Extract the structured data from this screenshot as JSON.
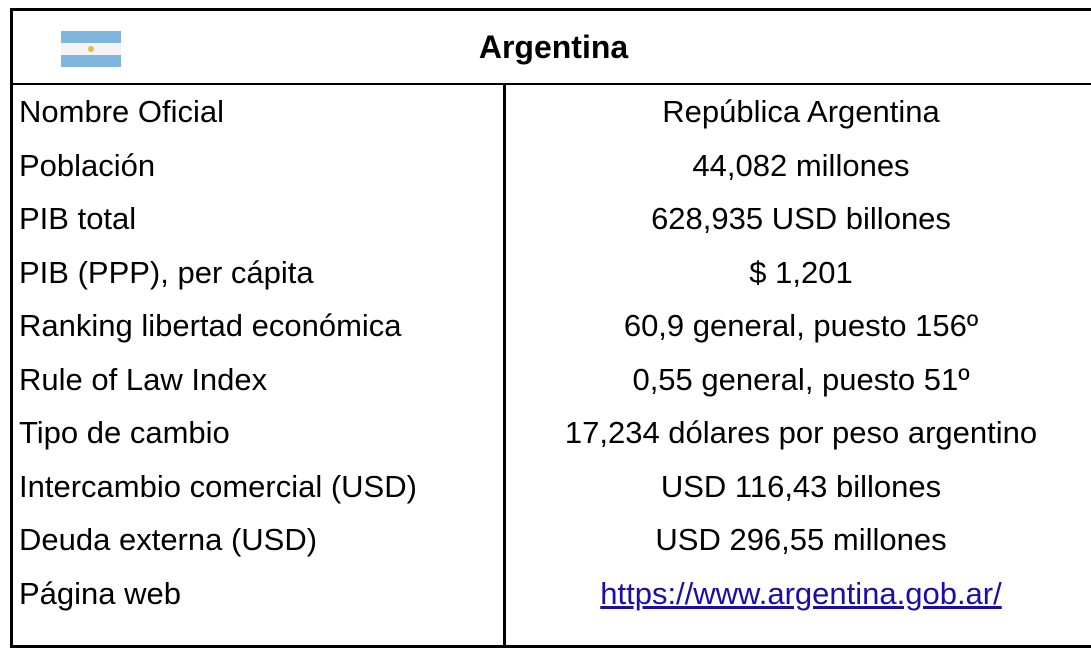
{
  "header": {
    "title": "Argentina"
  },
  "table": {
    "rows": [
      [
        "Nombre Oficial",
        "República Argentina"
      ],
      [
        "Población",
        "44,082 millones"
      ],
      [
        "PIB total",
        "628,935 USD billones"
      ],
      [
        "PIB (PPP), per cápita",
        "$ 1,201"
      ],
      [
        "Ranking libertad económica",
        "60,9 general, puesto 156º"
      ],
      [
        "Rule of Law Index",
        "0,55 general, puesto 51º"
      ],
      [
        "Tipo de cambio",
        "17,234 dólares por peso argentino"
      ],
      [
        "Intercambio comercial (USD)",
        "USD 116,43 billones"
      ],
      [
        "Deuda externa (USD)",
        "USD 296,55 millones"
      ],
      [
        "Página web",
        "https://www.argentina.gob.ar/"
      ]
    ]
  }
}
